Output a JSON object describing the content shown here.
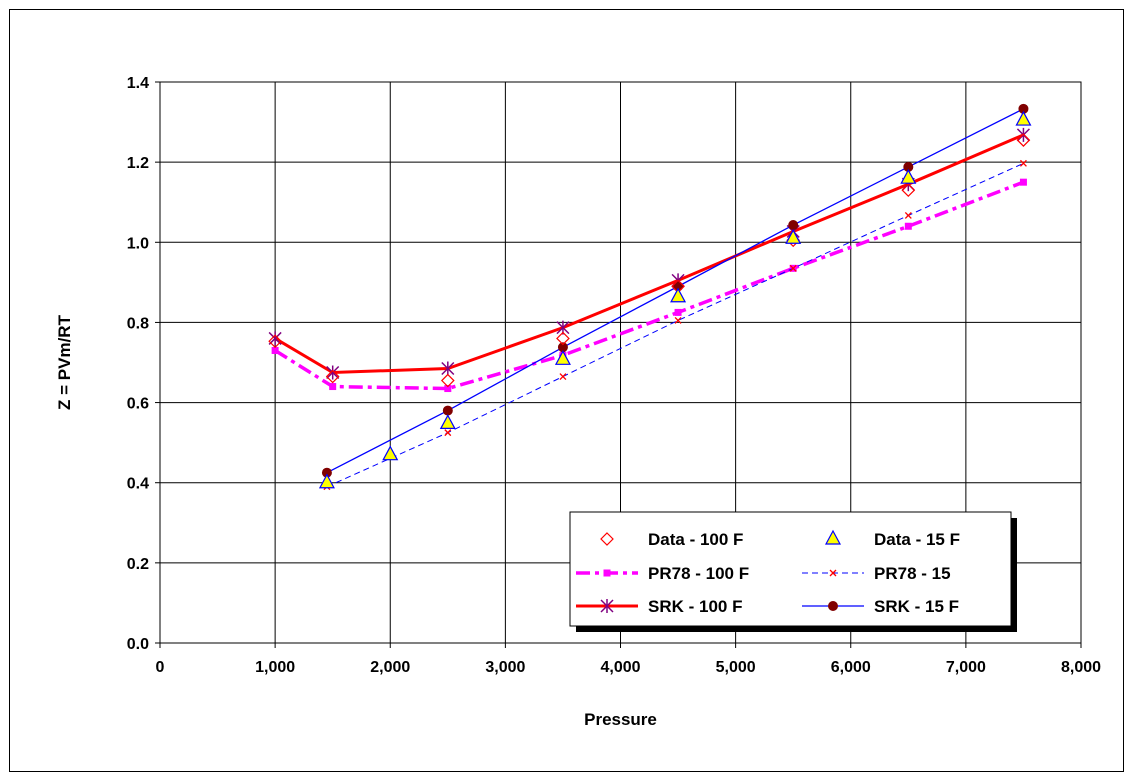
{
  "chart_data": {
    "type": "line",
    "xlabel": "Pressure",
    "ylabel": "Z = PVm/RT",
    "xlim": [
      0,
      8000
    ],
    "ylim": [
      0,
      1.4
    ],
    "x_ticks": [
      0,
      1000,
      2000,
      3000,
      4000,
      5000,
      6000,
      7000,
      8000
    ],
    "x_tick_labels": [
      "0",
      "1,000",
      "2,000",
      "3,000",
      "4,000",
      "5,000",
      "6,000",
      "7,000",
      "8,000"
    ],
    "y_ticks": [
      0,
      0.2,
      0.4,
      0.6,
      0.8,
      1.0,
      1.2,
      1.4
    ],
    "y_tick_labels": [
      "0.0",
      "0.2",
      "0.4",
      "0.6",
      "0.8",
      "1.0",
      "1.2",
      "1.4"
    ],
    "grid": true,
    "legend_position": "bottom-right",
    "series": [
      {
        "name": "Data - 100 F",
        "color": "#ff0000",
        "marker": "diamond",
        "line": "none",
        "x": [
          1000,
          1500,
          2500,
          3500,
          4500,
          5500,
          6500,
          7500
        ],
        "y": [
          0.753,
          0.665,
          0.655,
          0.76,
          0.89,
          1.005,
          1.13,
          1.255
        ]
      },
      {
        "name": "Data - 15 F",
        "color": "#0000ff",
        "fill": "#ffff00",
        "marker": "triangle",
        "line": "none",
        "x": [
          1450,
          2000,
          2500,
          3500,
          4500,
          5500,
          6500,
          7500
        ],
        "y": [
          0.4,
          0.47,
          0.548,
          0.708,
          0.864,
          1.01,
          1.16,
          1.305
        ]
      },
      {
        "name": "PR78 - 100 F",
        "color": "#ff00ff",
        "marker": "square",
        "line": "dashdot",
        "x": [
          1000,
          1500,
          2500,
          3500,
          4500,
          5500,
          6500,
          7500
        ],
        "y": [
          0.73,
          0.64,
          0.635,
          0.718,
          0.825,
          0.935,
          1.04,
          1.15
        ]
      },
      {
        "name": "PR78 - 15",
        "color": "#0000ff",
        "marker_color": "#ff0000",
        "marker": "x",
        "line": "dash",
        "x": [
          1450,
          2500,
          3500,
          4500,
          5500,
          6500,
          7500
        ],
        "y": [
          0.39,
          0.525,
          0.665,
          0.805,
          0.935,
          1.067,
          1.197
        ]
      },
      {
        "name": "SRK - 100 F",
        "color": "#ff0000",
        "marker_color": "#800080",
        "marker": "star",
        "line": "solid",
        "x": [
          1000,
          1500,
          2500,
          3500,
          4500,
          5500,
          6500,
          7500
        ],
        "y": [
          0.76,
          0.675,
          0.685,
          0.787,
          0.905,
          1.027,
          1.145,
          1.268
        ]
      },
      {
        "name": "SRK - 15 F",
        "color": "#0000ff",
        "marker_color": "#800000",
        "marker": "circle",
        "line": "solid",
        "x": [
          1450,
          2500,
          3500,
          4500,
          5500,
          6500,
          7500
        ],
        "y": [
          0.425,
          0.58,
          0.738,
          0.89,
          1.043,
          1.188,
          1.333
        ]
      }
    ]
  }
}
